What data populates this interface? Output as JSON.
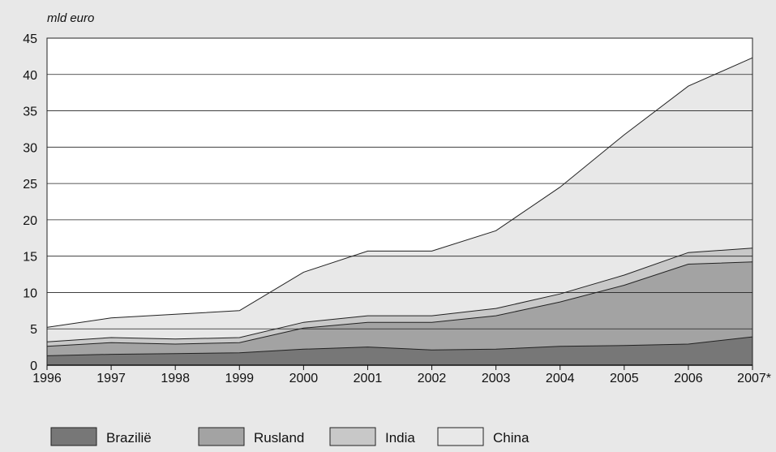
{
  "chart_data": {
    "type": "area",
    "stacked": true,
    "unit_label": "mld euro",
    "categories": [
      "1996",
      "1997",
      "1998",
      "1999",
      "2000",
      "2001",
      "2002",
      "2003",
      "2004",
      "2005",
      "2006",
      "2007*"
    ],
    "ylim": [
      0,
      45
    ],
    "yticks": [
      0,
      5,
      10,
      15,
      20,
      25,
      30,
      35,
      40,
      45
    ],
    "grid": true,
    "legend_position": "bottom",
    "series": [
      {
        "name": "Brazilië",
        "color": "#777777",
        "values": [
          1.3,
          1.5,
          1.6,
          1.7,
          2.2,
          2.5,
          2.1,
          2.2,
          2.6,
          2.7,
          2.9,
          3.9
        ]
      },
      {
        "name": "Rusland",
        "color": "#a3a3a3",
        "values": [
          1.3,
          1.6,
          1.3,
          1.4,
          2.9,
          3.4,
          3.8,
          4.6,
          6.1,
          8.3,
          11.0,
          10.3
        ]
      },
      {
        "name": "India",
        "color": "#c8c8c8",
        "values": [
          0.6,
          0.7,
          0.7,
          0.7,
          0.8,
          0.9,
          0.9,
          1.0,
          1.1,
          1.4,
          1.6,
          1.9
        ]
      },
      {
        "name": "China",
        "color": "#e8e8e8",
        "values": [
          2.0,
          2.7,
          3.4,
          3.7,
          6.9,
          8.9,
          8.9,
          10.7,
          14.7,
          19.3,
          22.9,
          26.2
        ]
      }
    ]
  }
}
